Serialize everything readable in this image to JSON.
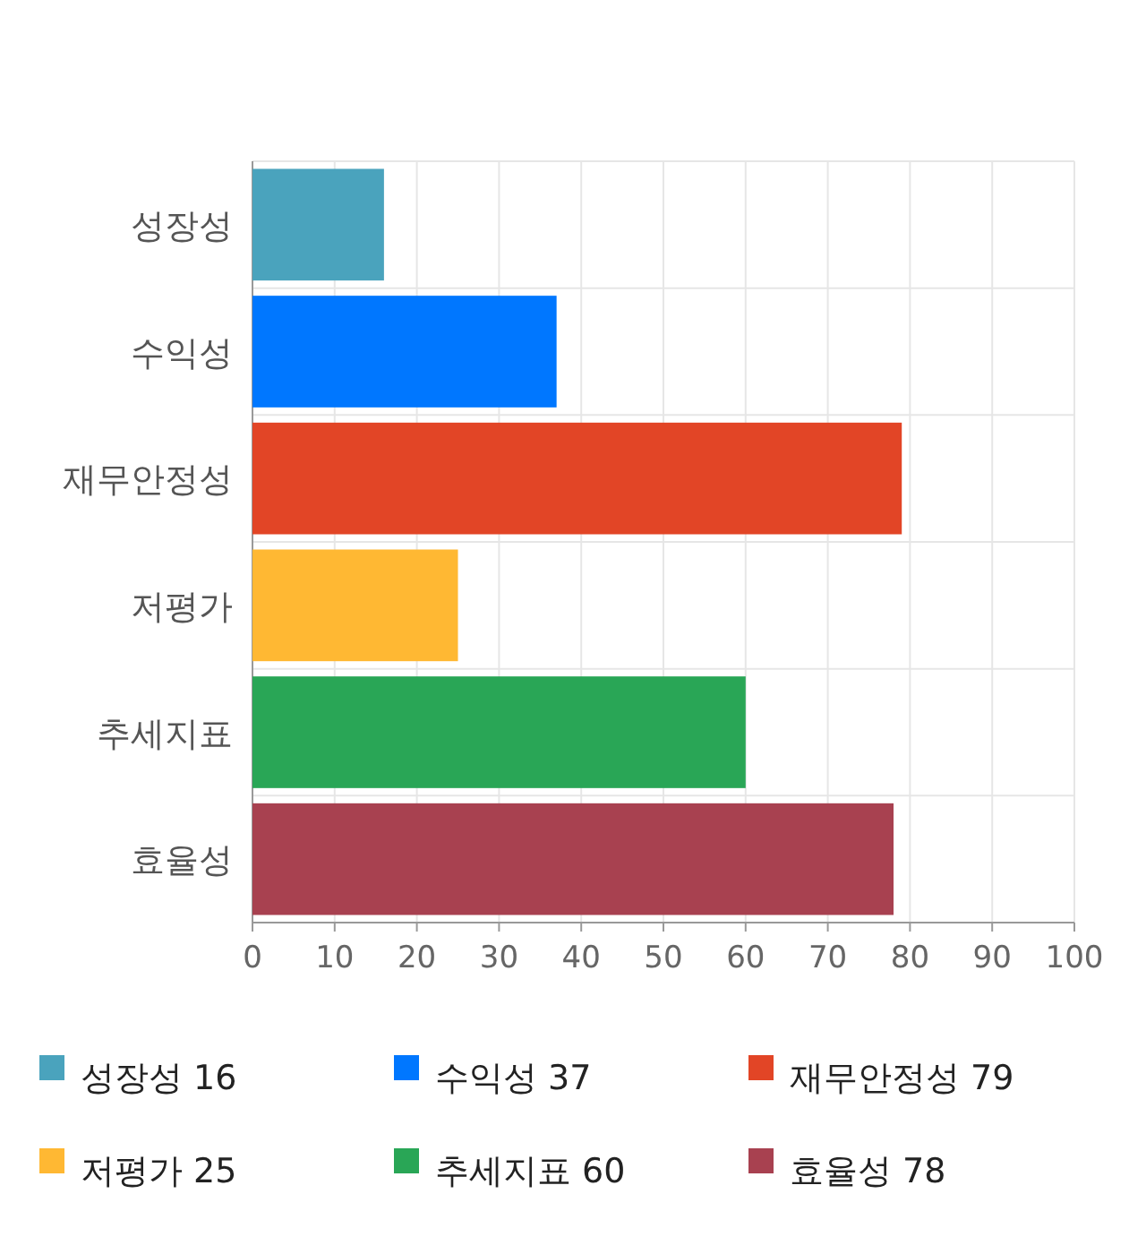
{
  "chart_data": {
    "type": "bar",
    "orientation": "horizontal",
    "stacked": true,
    "categories": [
      "성장성",
      "수익성",
      "재무안정성",
      "저평가",
      "추세지표",
      "효율성"
    ],
    "series": [
      {
        "name": "성장성 16",
        "color": "#4aa3bd",
        "values": [
          16,
          null,
          null,
          null,
          null,
          null
        ]
      },
      {
        "name": "수익성 37",
        "color": "#0077ff",
        "values": [
          null,
          37,
          null,
          null,
          null,
          null
        ]
      },
      {
        "name": "재무안정성 79",
        "color": "#e24526",
        "values": [
          null,
          null,
          79,
          null,
          null,
          null
        ]
      },
      {
        "name": "저평가 25",
        "color": "#ffb833",
        "values": [
          null,
          null,
          null,
          25,
          null,
          null
        ]
      },
      {
        "name": "추세지표 60",
        "color": "#29a656",
        "values": [
          null,
          null,
          null,
          null,
          60,
          null
        ]
      },
      {
        "name": "효율성 78",
        "color": "#a84150",
        "values": [
          null,
          null,
          null,
          null,
          null,
          78
        ]
      }
    ],
    "xlim": [
      0,
      100
    ],
    "xticks": [
      0,
      10,
      20,
      30,
      40,
      50,
      60,
      70,
      80,
      90,
      100
    ],
    "grid": true,
    "legend": "bottom"
  }
}
